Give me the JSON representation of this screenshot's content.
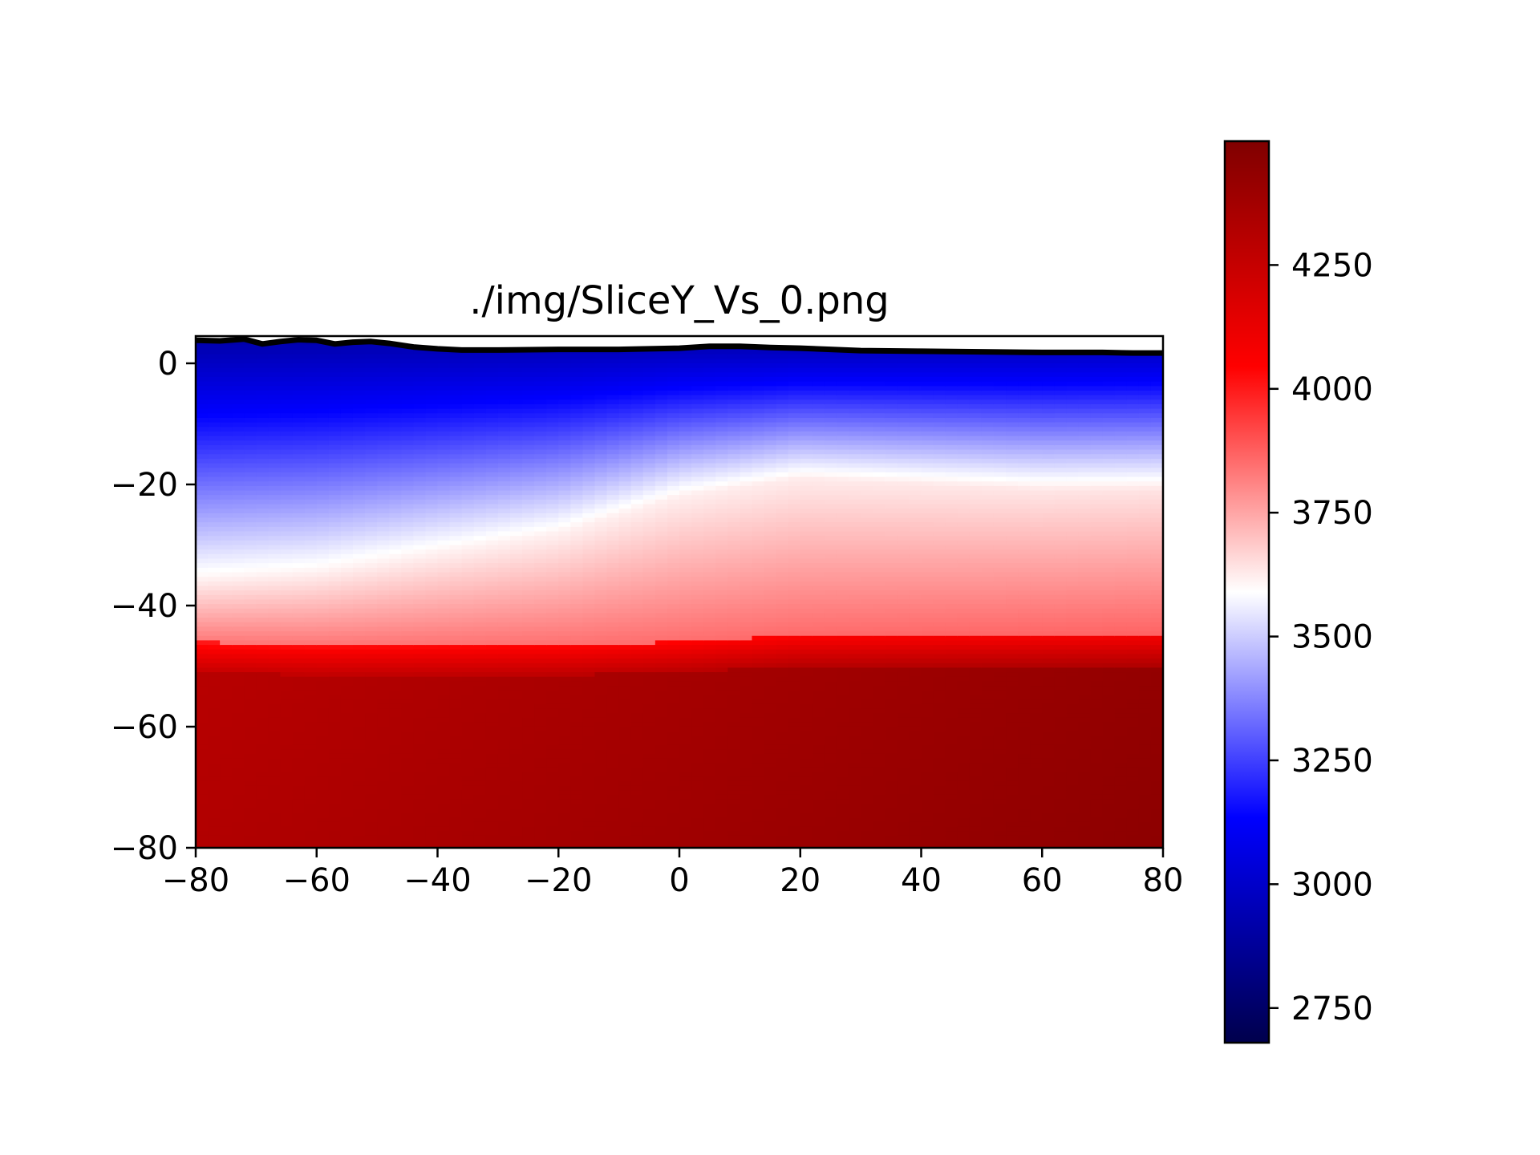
{
  "chart_data": {
    "type": "heatmap",
    "title": "./img/SliceY_Vs_0.png",
    "xlabel": "",
    "ylabel": "",
    "xlim": [
      -80,
      80
    ],
    "ylim": [
      -80,
      4.5
    ],
    "x_ticks": [
      -80,
      -60,
      -40,
      -20,
      0,
      20,
      40,
      60,
      80
    ],
    "x_tick_labels": [
      "−80",
      "−60",
      "−40",
      "−20",
      "0",
      "20",
      "40",
      "60",
      "80"
    ],
    "y_ticks": [
      0,
      -20,
      -40,
      -60,
      -80
    ],
    "y_tick_labels": [
      "0",
      "−20",
      "−40",
      "−60",
      "−80"
    ],
    "colormap": "seismic",
    "colorbar": {
      "range": [
        2680,
        4500
      ],
      "ticks": [
        4250,
        4000,
        3750,
        3500,
        3250,
        3000,
        2750
      ],
      "tick_labels": [
        "4250",
        "4000",
        "3750",
        "3500",
        "3250",
        "3000",
        "2750"
      ]
    },
    "surface_profile": {
      "x": [
        -80,
        -76,
        -72,
        -69,
        -66,
        -63,
        -60,
        -57,
        -54,
        -51,
        -48,
        -44,
        -40,
        -36,
        -30,
        -20,
        -10,
        0,
        5,
        10,
        15,
        20,
        25,
        30,
        40,
        50,
        60,
        70,
        75,
        80
      ],
      "y": [
        3.8,
        3.7,
        4.0,
        3.2,
        3.6,
        3.9,
        3.8,
        3.2,
        3.5,
        3.6,
        3.3,
        2.7,
        2.4,
        2.2,
        2.2,
        2.3,
        2.3,
        2.5,
        2.8,
        2.8,
        2.6,
        2.5,
        2.3,
        2.1,
        2.0,
        1.9,
        1.8,
        1.8,
        1.7,
        1.7
      ]
    },
    "interfaces": {
      "x": [
        -80,
        -60,
        -40,
        -20,
        0,
        20,
        40,
        60,
        80
      ],
      "upper_crust_white_depth": [
        -35,
        -34,
        -31,
        -28,
        -22,
        -19,
        -20,
        -21,
        -21
      ],
      "moho_depth": [
        -46,
        -46.5,
        -46.5,
        -46.5,
        -46,
        -45,
        -45,
        -45,
        -45
      ]
    },
    "velocity_profile": {
      "depth": [
        2,
        -5,
        -15,
        -25,
        -35,
        -42,
        -46,
        -50,
        -60,
        -80
      ],
      "vs_left": [
        2950,
        3250,
        3420,
        3560,
        3620,
        3760,
        3950,
        4300,
        4330,
        4360
      ],
      "vs_right": [
        3050,
        3300,
        3480,
        3640,
        3760,
        3820,
        4050,
        4360,
        4420,
        4460
      ]
    }
  }
}
